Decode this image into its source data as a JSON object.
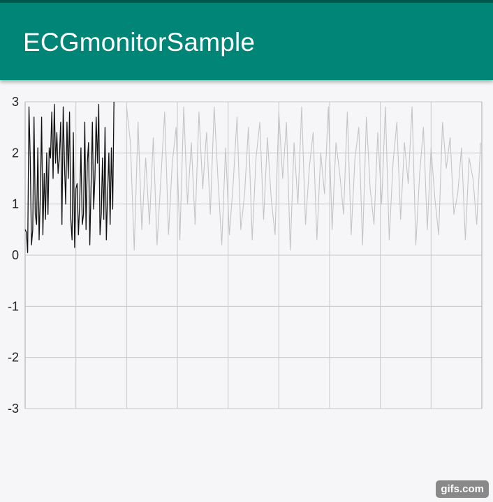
{
  "app_bar": {
    "title": "ECGmonitorSample",
    "color": "#008577",
    "status_color": "#00574b"
  },
  "watermark": {
    "text": "gifs.com"
  },
  "chart_data": {
    "type": "line",
    "title": "",
    "xlabel": "",
    "ylabel": "",
    "ylim": [
      -3,
      3
    ],
    "yticks": [
      "3",
      "2",
      "1",
      "0",
      "-1",
      "-2",
      "-3"
    ],
    "xlim": [
      0,
      360
    ],
    "grid": true,
    "legend": "none",
    "sweep_position": 70,
    "colors": {
      "current": "#111111",
      "previous": "#c4c4c4",
      "grid": "#c8c8c8",
      "axis": "#a8a8a8"
    },
    "series": [
      {
        "x": [
          0,
          1,
          2,
          3,
          4,
          5,
          6,
          7,
          8,
          9,
          10,
          11,
          12,
          13,
          14,
          15,
          16,
          17,
          18,
          19,
          20,
          21,
          22,
          23,
          24,
          25,
          26,
          27,
          28,
          29,
          30,
          31,
          32,
          33,
          34,
          35,
          36,
          37,
          38,
          39,
          40,
          41,
          42,
          43,
          44,
          45,
          46,
          47,
          48,
          49,
          50,
          51,
          52,
          53,
          54,
          55,
          56,
          57,
          58,
          59,
          60,
          61,
          62,
          63,
          64,
          65,
          66,
          67,
          68,
          69,
          70
        ],
        "values": [
          0.5,
          0.45,
          0.05,
          2.9,
          1.9,
          0.2,
          0.5,
          2.7,
          0.8,
          0.6,
          2.1,
          0.3,
          1.2,
          2.7,
          0.4,
          1.6,
          0.7,
          2.0,
          0.8,
          2.1,
          1.9,
          2.8,
          1.5,
          2.95,
          1.8,
          2.4,
          1.6,
          1.9,
          2.6,
          0.6,
          2.9,
          1.8,
          1.0,
          2.6,
          1.5,
          2.8,
          0.7,
          0.3,
          2.4,
          0.15,
          1.3,
          1.4,
          0.4,
          1.0,
          2.1,
          0.6,
          0.8,
          2.6,
          0.5,
          1.8,
          2.2,
          0.2,
          1.4,
          2.6,
          0.9,
          1.5,
          2.7,
          1.8,
          2.95,
          0.4,
          0.8,
          1.9,
          0.7,
          2.5,
          0.3,
          1.2,
          2.0,
          0.6,
          2.1,
          0.9,
          3.0
        ]
      },
      {
        "x": [
          80,
          83,
          86,
          89,
          92,
          95,
          98,
          101,
          104,
          107,
          110,
          113,
          116,
          119,
          122,
          125,
          128,
          131,
          134,
          137,
          140,
          143,
          146,
          149,
          152,
          155,
          158,
          161,
          164,
          167,
          170,
          173,
          176,
          179,
          182,
          185,
          188,
          191,
          194,
          197,
          200,
          203,
          206,
          209,
          212,
          215,
          218,
          221,
          224,
          227,
          230,
          233,
          236,
          239,
          242,
          245,
          248,
          251,
          254,
          257,
          260,
          263,
          266,
          269,
          272,
          275,
          278,
          281,
          284,
          287,
          290,
          293,
          296,
          299,
          302,
          305,
          308,
          311,
          314,
          317,
          320,
          323,
          326,
          329,
          332,
          335,
          338,
          341,
          344,
          347,
          350,
          353,
          356,
          359
        ],
        "values": [
          2.9,
          2.2,
          0.1,
          2.6,
          0.5,
          1.9,
          0.6,
          2.3,
          0.2,
          1.5,
          2.8,
          0.4,
          1.8,
          2.5,
          0.3,
          2.9,
          1.0,
          2.2,
          0.6,
          2.8,
          1.3,
          2.4,
          0.8,
          2.9,
          1.5,
          0.2,
          2.1,
          0.4,
          1.4,
          2.7,
          0.5,
          1.2,
          2.5,
          0.3,
          1.9,
          2.6,
          0.7,
          2.3,
          1.1,
          0.4,
          2.8,
          1.5,
          2.6,
          0.1,
          2.2,
          1.0,
          2.9,
          0.6,
          1.7,
          2.4,
          0.3,
          2.0,
          1.2,
          2.9,
          0.5,
          2.2,
          1.6,
          0.8,
          2.8,
          0.4,
          1.9,
          2.5,
          0.2,
          2.7,
          1.3,
          0.6,
          2.4,
          1.0,
          2.9,
          0.3,
          1.8,
          2.6,
          0.7,
          2.2,
          1.4,
          2.9,
          0.2,
          1.6,
          2.5,
          0.5,
          2.1,
          1.1,
          0.4,
          2.6,
          1.7,
          2.3,
          0.8,
          1.2,
          2.1,
          0.3,
          1.9,
          1.5,
          0.6,
          2.2
        ]
      }
    ]
  }
}
